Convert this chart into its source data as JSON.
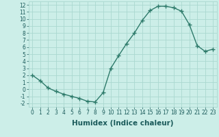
{
  "x": [
    0,
    1,
    2,
    3,
    4,
    5,
    6,
    7,
    8,
    9,
    10,
    11,
    12,
    13,
    14,
    15,
    16,
    17,
    18,
    19,
    20,
    21,
    22,
    23
  ],
  "y": [
    2.0,
    1.2,
    0.2,
    -0.3,
    -0.7,
    -1.0,
    -1.3,
    -1.7,
    -1.8,
    -0.5,
    3.0,
    4.8,
    6.5,
    8.0,
    9.8,
    11.2,
    11.8,
    11.8,
    11.6,
    11.1,
    9.2,
    6.2,
    5.4,
    5.7
  ],
  "line_color": "#2d7a6a",
  "marker": "+",
  "markersize": 4,
  "linewidth": 1.0,
  "bg_color": "#cceee8",
  "grid_color": "#aad8d0",
  "xlabel": "Humidex (Indice chaleur)",
  "xlim": [
    -0.5,
    23.5
  ],
  "ylim": [
    -2.5,
    12.5
  ],
  "yticks": [
    -2,
    -1,
    0,
    1,
    2,
    3,
    4,
    5,
    6,
    7,
    8,
    9,
    10,
    11,
    12
  ],
  "xticks": [
    0,
    1,
    2,
    3,
    4,
    5,
    6,
    7,
    8,
    9,
    10,
    11,
    12,
    13,
    14,
    15,
    16,
    17,
    18,
    19,
    20,
    21,
    22,
    23
  ],
  "tick_fontsize": 5.5,
  "xlabel_fontsize": 7.5,
  "tick_color": "#1a5a5a",
  "label_color": "#1a5a5a",
  "markeredgewidth": 1.0
}
